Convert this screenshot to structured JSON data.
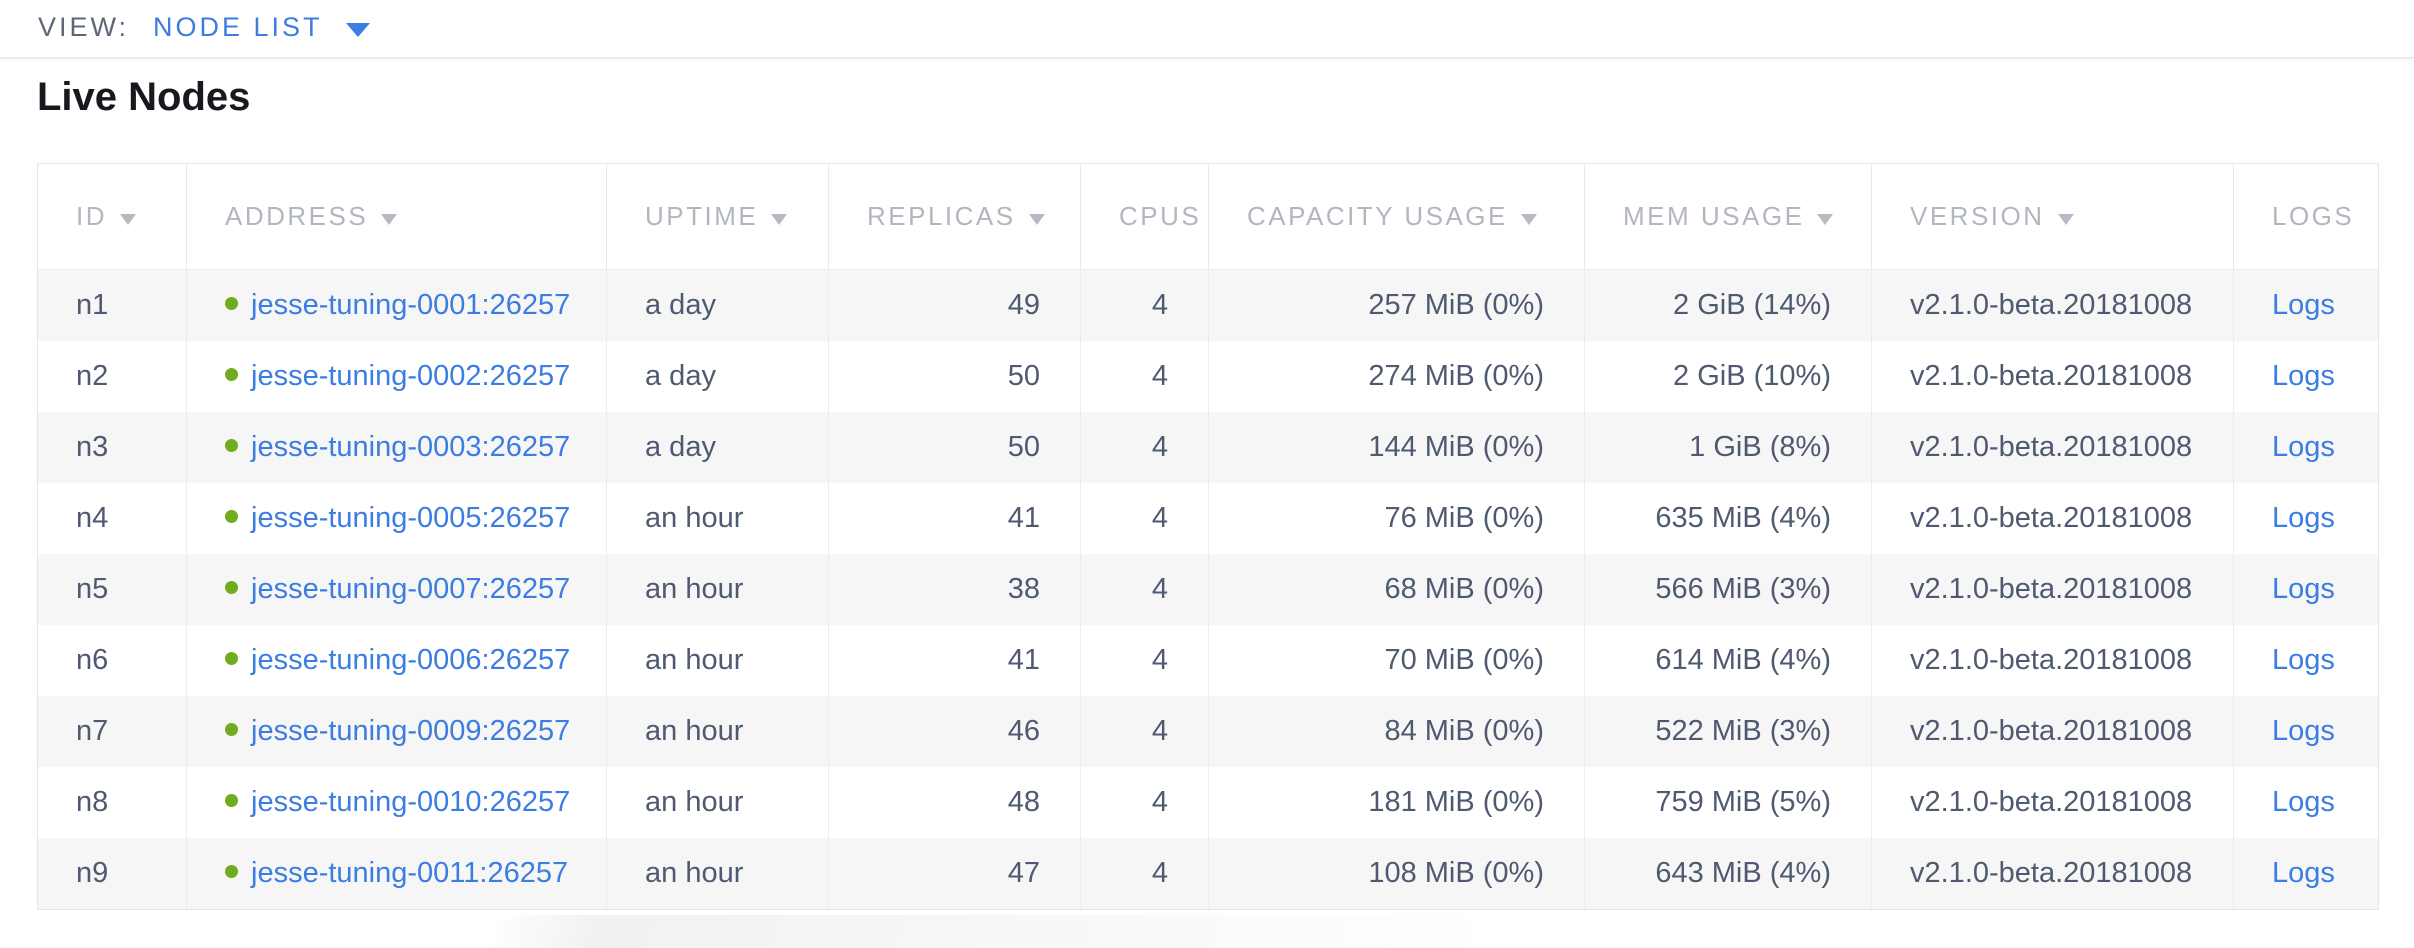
{
  "view_bar": {
    "label": "VIEW:",
    "selected": "NODE LIST"
  },
  "page": {
    "title": "Live Nodes"
  },
  "table": {
    "columns": [
      {
        "key": "id",
        "label": "ID",
        "sortable": true,
        "align": "left"
      },
      {
        "key": "address",
        "label": "ADDRESS",
        "sortable": true,
        "align": "left"
      },
      {
        "key": "uptime",
        "label": "UPTIME",
        "sortable": true,
        "align": "left"
      },
      {
        "key": "replicas",
        "label": "REPLICAS",
        "sortable": true,
        "align": "right"
      },
      {
        "key": "cpus",
        "label": "CPUS",
        "sortable": false,
        "align": "right"
      },
      {
        "key": "capacity",
        "label": "CAPACITY USAGE",
        "sortable": true,
        "align": "right"
      },
      {
        "key": "mem",
        "label": "MEM USAGE",
        "sortable": true,
        "align": "right"
      },
      {
        "key": "version",
        "label": "VERSION",
        "sortable": true,
        "align": "left"
      },
      {
        "key": "logs",
        "label": "LOGS",
        "sortable": false,
        "align": "left"
      }
    ],
    "rows": [
      {
        "id": "n1",
        "address": "jesse-tuning-0001:26257",
        "uptime": "a day",
        "replicas": "49",
        "cpus": "4",
        "capacity": "257 MiB (0%)",
        "mem": "2 GiB (14%)",
        "version": "v2.1.0-beta.20181008",
        "logs": "Logs"
      },
      {
        "id": "n2",
        "address": "jesse-tuning-0002:26257",
        "uptime": "a day",
        "replicas": "50",
        "cpus": "4",
        "capacity": "274 MiB (0%)",
        "mem": "2 GiB (10%)",
        "version": "v2.1.0-beta.20181008",
        "logs": "Logs"
      },
      {
        "id": "n3",
        "address": "jesse-tuning-0003:26257",
        "uptime": "a day",
        "replicas": "50",
        "cpus": "4",
        "capacity": "144 MiB (0%)",
        "mem": "1 GiB (8%)",
        "version": "v2.1.0-beta.20181008",
        "logs": "Logs"
      },
      {
        "id": "n4",
        "address": "jesse-tuning-0005:26257",
        "uptime": "an hour",
        "replicas": "41",
        "cpus": "4",
        "capacity": "76 MiB (0%)",
        "mem": "635 MiB (4%)",
        "version": "v2.1.0-beta.20181008",
        "logs": "Logs"
      },
      {
        "id": "n5",
        "address": "jesse-tuning-0007:26257",
        "uptime": "an hour",
        "replicas": "38",
        "cpus": "4",
        "capacity": "68 MiB (0%)",
        "mem": "566 MiB (3%)",
        "version": "v2.1.0-beta.20181008",
        "logs": "Logs"
      },
      {
        "id": "n6",
        "address": "jesse-tuning-0006:26257",
        "uptime": "an hour",
        "replicas": "41",
        "cpus": "4",
        "capacity": "70 MiB (0%)",
        "mem": "614 MiB (4%)",
        "version": "v2.1.0-beta.20181008",
        "logs": "Logs"
      },
      {
        "id": "n7",
        "address": "jesse-tuning-0009:26257",
        "uptime": "an hour",
        "replicas": "46",
        "cpus": "4",
        "capacity": "84 MiB (0%)",
        "mem": "522 MiB (3%)",
        "version": "v2.1.0-beta.20181008",
        "logs": "Logs"
      },
      {
        "id": "n8",
        "address": "jesse-tuning-0010:26257",
        "uptime": "an hour",
        "replicas": "48",
        "cpus": "4",
        "capacity": "181 MiB (0%)",
        "mem": "759 MiB (5%)",
        "version": "v2.1.0-beta.20181008",
        "logs": "Logs"
      },
      {
        "id": "n9",
        "address": "jesse-tuning-0011:26257",
        "uptime": "an hour",
        "replicas": "47",
        "cpus": "4",
        "capacity": "108 MiB (0%)",
        "mem": "643 MiB (4%)",
        "version": "v2.1.0-beta.20181008",
        "logs": "Logs"
      }
    ]
  },
  "colors": {
    "accent_blue": "#3c7de2",
    "live_green": "#6fad1f",
    "header_gray": "#b2b7bf",
    "body_text": "#4f5a71"
  }
}
